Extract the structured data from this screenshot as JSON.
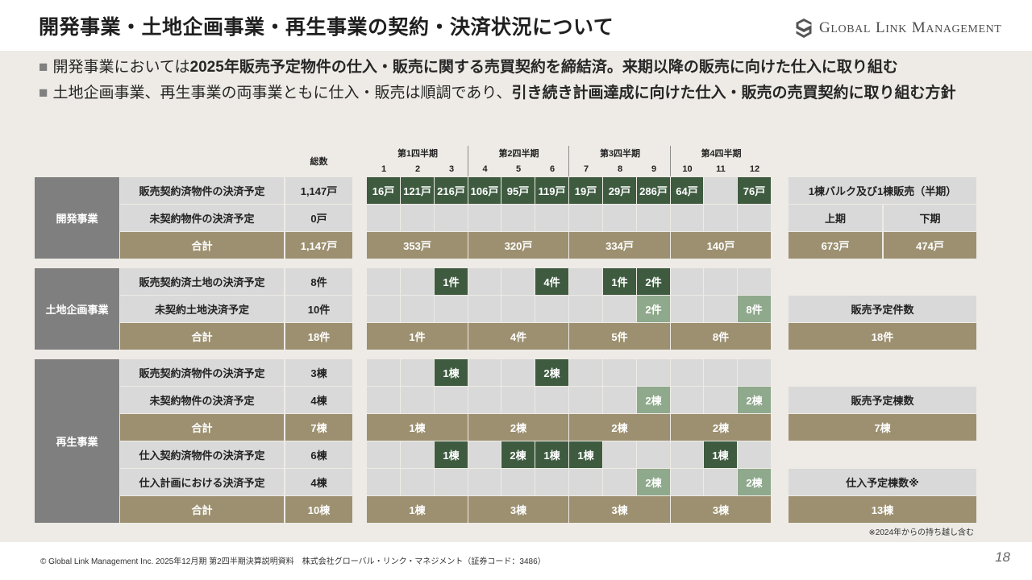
{
  "header": {
    "title": "開発事業・土地企画事業・再生事業の契約・決済状況について",
    "logo_icon": "company-logo-icon",
    "logo_words": [
      "GLOBAL",
      "LINK",
      "MANAGEMENT"
    ]
  },
  "bullets": [
    {
      "marker": "■",
      "normal": "開発事業においては",
      "bold": "2025年販売予定物件の仕入・販売に関する売買契約を締結済。来期以降の販売に向けた仕入に取り組む"
    },
    {
      "marker": "■",
      "normal": "土地企画事業、再生事業の両事業ともに仕入・販売は順調であり、",
      "bold": "引き続き計画達成に向けた仕入・販売の売買契約に取り組む方針"
    }
  ],
  "colors": {
    "contracted": "#3e5b40",
    "planned": "#8fa98c",
    "empty": "#d9d9d9",
    "total": "#9c9070",
    "category": "#7f7f7f"
  },
  "table": {
    "total_header": "総数",
    "quarters": [
      {
        "label": "第1四半期",
        "months": [
          "1",
          "2",
          "3"
        ]
      },
      {
        "label": "第2四半期",
        "months": [
          "4",
          "5",
          "6"
        ]
      },
      {
        "label": "第3四半期",
        "months": [
          "7",
          "8",
          "9"
        ]
      },
      {
        "label": "第4四半期",
        "months": [
          "10",
          "11",
          "12"
        ]
      }
    ],
    "sections": [
      {
        "category": "開発事業",
        "rows": [
          {
            "kind": "detail",
            "label": "販売契約済物件の決済予定",
            "total": "1,147戸",
            "months": [
              {
                "value": "16戸",
                "status": "contracted"
              },
              {
                "value": "121戸",
                "status": "contracted"
              },
              {
                "value": "216戸",
                "status": "contracted"
              },
              {
                "value": "106戸",
                "status": "contracted"
              },
              {
                "value": "95戸",
                "status": "contracted"
              },
              {
                "value": "119戸",
                "status": "contracted"
              },
              {
                "value": "19戸",
                "status": "contracted"
              },
              {
                "value": "29戸",
                "status": "contracted"
              },
              {
                "value": "286戸",
                "status": "contracted"
              },
              {
                "value": "64戸",
                "status": "contracted"
              },
              null,
              {
                "value": "76戸",
                "status": "contracted"
              }
            ],
            "side": {
              "kind": "label",
              "cells": [
                "1棟バルク及び1棟販売（半期）"
              ]
            }
          },
          {
            "kind": "detail",
            "label": "未契約物件の決済予定",
            "total": "0戸",
            "months": [
              null,
              null,
              null,
              null,
              null,
              null,
              null,
              null,
              null,
              null,
              null,
              null
            ],
            "side": {
              "kind": "label",
              "cells": [
                "上期",
                "下期"
              ]
            }
          },
          {
            "kind": "total",
            "label": "合計",
            "total": "1,147戸",
            "quarters": [
              "353戸",
              "320戸",
              "334戸",
              "140戸"
            ],
            "side": {
              "kind": "total",
              "cells": [
                "673戸",
                "474戸"
              ]
            }
          }
        ]
      },
      {
        "category": "土地企画事業",
        "rows": [
          {
            "kind": "detail",
            "label": "販売契約済土地の決済予定",
            "total": "8件",
            "months": [
              null,
              null,
              {
                "value": "1件",
                "status": "contracted"
              },
              null,
              null,
              {
                "value": "4件",
                "status": "contracted"
              },
              null,
              {
                "value": "1件",
                "status": "contracted"
              },
              {
                "value": "2件",
                "status": "contracted"
              },
              null,
              null,
              null
            ]
          },
          {
            "kind": "detail",
            "label": "未契約土地決済予定",
            "total": "10件",
            "months": [
              null,
              null,
              null,
              null,
              null,
              null,
              null,
              null,
              {
                "value": "2件",
                "status": "planned"
              },
              null,
              null,
              {
                "value": "8件",
                "status": "planned"
              }
            ],
            "side": {
              "kind": "label",
              "cells": [
                "販売予定件数"
              ]
            }
          },
          {
            "kind": "total",
            "label": "合計",
            "total": "18件",
            "quarters": [
              "1件",
              "4件",
              "5件",
              "8件"
            ],
            "side": {
              "kind": "total",
              "cells": [
                "18件"
              ]
            }
          }
        ]
      },
      {
        "category": "再生事業",
        "rows": [
          {
            "kind": "detail",
            "label": "販売契約済物件の決済予定",
            "total": "3棟",
            "months": [
              null,
              null,
              {
                "value": "1棟",
                "status": "contracted"
              },
              null,
              null,
              {
                "value": "2棟",
                "status": "contracted"
              },
              null,
              null,
              null,
              null,
              null,
              null
            ]
          },
          {
            "kind": "detail",
            "label": "未契約物件の決済予定",
            "total": "4棟",
            "months": [
              null,
              null,
              null,
              null,
              null,
              null,
              null,
              null,
              {
                "value": "2棟",
                "status": "planned"
              },
              null,
              null,
              {
                "value": "2棟",
                "status": "planned"
              }
            ],
            "side": {
              "kind": "label",
              "cells": [
                "販売予定棟数"
              ]
            }
          },
          {
            "kind": "total",
            "label": "合計",
            "total": "7棟",
            "quarters": [
              "1棟",
              "2棟",
              "2棟",
              "2棟"
            ],
            "side": {
              "kind": "total",
              "cells": [
                "7棟"
              ]
            }
          },
          {
            "kind": "detail",
            "label": "仕入契約済物件の決済予定",
            "total": "6棟",
            "months": [
              null,
              null,
              {
                "value": "1棟",
                "status": "contracted"
              },
              null,
              {
                "value": "2棟",
                "status": "contracted"
              },
              {
                "value": "1棟",
                "status": "contracted"
              },
              {
                "value": "1棟",
                "status": "contracted"
              },
              null,
              null,
              null,
              {
                "value": "1棟",
                "status": "contracted"
              },
              null
            ]
          },
          {
            "kind": "detail",
            "label": "仕入計画における決済予定",
            "total": "4棟",
            "months": [
              null,
              null,
              null,
              null,
              null,
              null,
              null,
              null,
              {
                "value": "2棟",
                "status": "planned"
              },
              null,
              null,
              {
                "value": "2棟",
                "status": "planned"
              }
            ],
            "side": {
              "kind": "label",
              "cells": [
                "仕入予定棟数※"
              ]
            }
          },
          {
            "kind": "total",
            "label": "合計",
            "total": "10棟",
            "quarters": [
              "1棟",
              "3棟",
              "3棟",
              "3棟"
            ],
            "side": {
              "kind": "total",
              "cells": [
                "13棟"
              ]
            }
          }
        ]
      }
    ],
    "note": "※2024年からの持ち越し含む"
  },
  "footer": {
    "copyright": "© Global Link Management Inc. 2025年12月期 第2四半期決算説明資料　株式会社グローバル・リンク・マネジメント（証券コード：3486）",
    "page_number": "18"
  }
}
